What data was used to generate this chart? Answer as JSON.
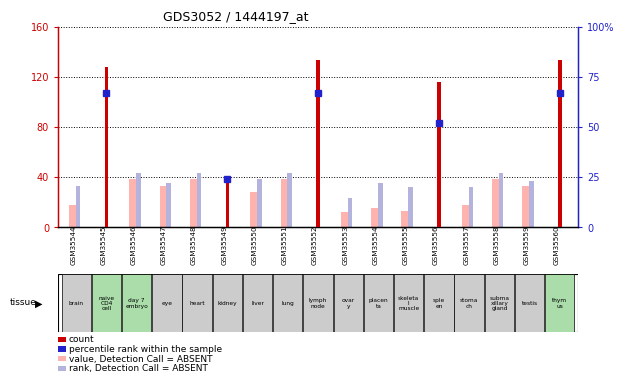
{
  "title": "GDS3052 / 1444197_at",
  "samples": [
    "GSM35544",
    "GSM35545",
    "GSM35546",
    "GSM35547",
    "GSM35548",
    "GSM35549",
    "GSM35550",
    "GSM35551",
    "GSM35552",
    "GSM35553",
    "GSM35554",
    "GSM35555",
    "GSM35556",
    "GSM35557",
    "GSM35558",
    "GSM35559",
    "GSM35560"
  ],
  "tissues": [
    "brain",
    "naive\nCD4\ncell",
    "day 7\nembryо",
    "eye",
    "heart",
    "kidney",
    "liver",
    "lung",
    "lymph\nnode",
    "ovar\ny",
    "placen\nta",
    "skeleta\nl\nmuscle",
    "sple\nen",
    "stoma\nch",
    "subma\nxillary\ngland",
    "testis",
    "thym\nus"
  ],
  "tissue_green": [
    false,
    true,
    true,
    false,
    false,
    false,
    false,
    false,
    false,
    false,
    false,
    false,
    false,
    false,
    false,
    false,
    true
  ],
  "count_values": [
    0,
    128,
    0,
    0,
    0,
    35,
    0,
    0,
    133,
    0,
    0,
    0,
    116,
    0,
    0,
    0,
    133
  ],
  "percentile_values": [
    0,
    107,
    0,
    0,
    0,
    38,
    0,
    0,
    107,
    0,
    0,
    0,
    83,
    0,
    0,
    0,
    107
  ],
  "absent_value_values": [
    18,
    0,
    38,
    33,
    38,
    0,
    28,
    38,
    0,
    12,
    15,
    13,
    0,
    18,
    38,
    33,
    0
  ],
  "absent_rank_values": [
    33,
    0,
    43,
    35,
    43,
    0,
    38,
    43,
    0,
    23,
    35,
    32,
    0,
    32,
    43,
    37,
    0
  ],
  "ylim_left": [
    0,
    160
  ],
  "ylim_right": [
    0,
    100
  ],
  "yticks_left": [
    0,
    40,
    80,
    120,
    160
  ],
  "yticks_right": [
    0,
    25,
    50,
    75,
    100
  ],
  "ytick_labels_left": [
    "0",
    "40",
    "80",
    "120",
    "160"
  ],
  "ytick_labels_right": [
    "0",
    "25",
    "50",
    "75",
    "100%"
  ],
  "count_color": "#cc0000",
  "percentile_color": "#2222cc",
  "absent_value_color": "#ffb3ae",
  "absent_rank_color": "#b3b3dd",
  "tissue_bg_green": "#aaddaa",
  "tissue_bg_gray": "#cccccc",
  "left_axis_color": "#cc0000",
  "right_axis_color": "#2222cc",
  "absent_bar_width": 0.28,
  "rank_bar_width": 0.15,
  "count_bar_width": 0.12
}
